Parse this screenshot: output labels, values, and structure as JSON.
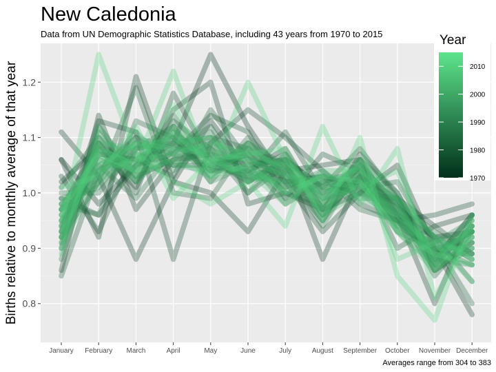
{
  "chart_data": {
    "type": "line",
    "title": "New Caledonia",
    "subtitle": "Data from UN Demographic Statistics Database, including 43 years from 1970 to 2015",
    "xlabel": "",
    "ylabel": "Births relative to monthly average of that year",
    "caption": "Averages range from 304 to 383",
    "categories": [
      "January",
      "February",
      "March",
      "April",
      "May",
      "June",
      "July",
      "August",
      "September",
      "October",
      "November",
      "December"
    ],
    "ylim": [
      0.73,
      1.27
    ],
    "yticks": [
      0.8,
      0.9,
      1.0,
      1.1,
      1.2
    ],
    "ytick_labels": [
      "0.8",
      "0.9",
      "1.0",
      "1.1",
      "1.2"
    ],
    "grid": true,
    "legend": {
      "title": "Year",
      "position": "right",
      "range": [
        1970,
        2015
      ],
      "ticks": [
        1970,
        1980,
        1990,
        2000,
        2010
      ],
      "tick_labels": [
        "1970",
        "1980",
        "1990",
        "2000",
        "2010"
      ],
      "color_low": "#01301a",
      "color_high": "#5ee48c"
    },
    "colors": {
      "panel": "#ebebeb",
      "grid": "#ffffff",
      "line_opacity": 0.3
    },
    "series": [
      {
        "year": 1970,
        "values": [
          1.06,
          0.98,
          1.05,
          1.09,
          1.25,
          1.12,
          1.02,
          1.03,
          1.01,
          0.96,
          0.92,
          0.93
        ]
      },
      {
        "year": 1971,
        "values": [
          1.11,
          1.03,
          0.88,
          1.02,
          1.13,
          1.04,
          1.08,
          0.97,
          1.0,
          1.05,
          0.9,
          0.78
        ]
      },
      {
        "year": 1972,
        "values": [
          0.86,
          1.14,
          0.97,
          1.06,
          1.07,
          1.05,
          1.06,
          0.88,
          1.03,
          0.99,
          0.94,
          0.96
        ]
      },
      {
        "year": 1973,
        "values": [
          1.06,
          0.92,
          1.21,
          1.02,
          1.0,
          0.93,
          1.04,
          1.05,
          1.06,
          0.96,
          0.8,
          0.96
        ]
      },
      {
        "year": 1974,
        "values": [
          1.02,
          1.08,
          1.01,
          1.15,
          1.2,
          0.98,
          1.0,
          0.97,
          1.05,
          0.95,
          0.89,
          0.93
        ]
      },
      {
        "year": 1975,
        "values": [
          0.93,
          1.13,
          1.11,
          0.88,
          1.09,
          1.15,
          1.1,
          1.04,
          0.98,
          0.95,
          0.96,
          0.98
        ]
      },
      {
        "year": 1976,
        "values": [
          1.03,
          0.93,
          1.08,
          1.09,
          1.04,
          1.07,
          1.02,
          0.93,
          1.0,
          0.99,
          0.87,
          0.94
        ]
      },
      {
        "year": 1977,
        "values": [
          0.97,
          1.09,
          1.0,
          1.18,
          1.06,
          1.02,
          1.06,
          1.01,
          1.08,
          0.99,
          0.86,
          0.91
        ]
      },
      {
        "year": 1978,
        "values": [
          0.99,
          0.96,
          1.05,
          1.07,
          1.14,
          1.11,
          0.99,
          1.07,
          1.04,
          0.9,
          0.94,
          0.89
        ]
      },
      {
        "year": 1979,
        "values": [
          0.85,
          1.04,
          1.1,
          1.05,
          1.05,
          1.03,
          1.11,
          1.0,
          1.02,
          0.98,
          0.92,
          0.84
        ]
      },
      {
        "year": 1980,
        "values": [
          0.92,
          1.02,
          1.19,
          1.0,
          0.99,
          1.09,
          1.03,
          0.95,
          1.07,
          1.0,
          0.88,
          0.96
        ]
      },
      {
        "year": 1981,
        "values": [
          1.01,
          1.1,
          1.02,
          1.13,
          1.08,
          1.0,
          1.05,
          0.96,
          1.03,
          0.93,
          0.9,
          0.87
        ]
      },
      {
        "year": 1982,
        "values": [
          0.94,
          1.07,
          1.06,
          1.03,
          1.15,
          1.06,
          0.98,
          1.02,
          1.04,
          0.97,
          0.85,
          0.93
        ]
      },
      {
        "year": 1983,
        "values": [
          0.98,
          0.96,
          1.13,
          1.1,
          1.04,
          1.04,
          1.07,
          0.99,
          1.01,
          1.02,
          0.91,
          0.8
        ]
      },
      {
        "year": 1984,
        "values": [
          0.9,
          1.12,
          1.03,
          1.06,
          1.1,
          1.08,
          1.01,
          1.03,
          0.97,
          0.95,
          0.88,
          0.96
        ]
      },
      {
        "year": 1985,
        "values": [
          1.0,
          1.0,
          1.08,
          1.12,
          1.02,
          1.1,
          1.04,
          0.94,
          1.05,
          0.98,
          0.93,
          0.89
        ]
      },
      {
        "year": 1986,
        "values": [
          0.95,
          1.05,
          0.99,
          1.08,
          1.12,
          1.02,
          1.06,
          1.01,
          1.02,
          0.96,
          0.9,
          0.91
        ]
      },
      {
        "year": 1987,
        "values": [
          0.88,
          1.09,
          1.04,
          1.14,
          1.05,
          1.07,
          1.0,
          0.98,
          1.06,
          1.0,
          0.87,
          0.94
        ]
      },
      {
        "year": 1988,
        "values": [
          0.97,
          1.03,
          1.11,
          1.04,
          1.09,
          1.03,
          1.05,
          0.96,
          1.03,
          0.97,
          0.92,
          0.88
        ]
      },
      {
        "year": 1989,
        "values": [
          0.92,
          1.07,
          1.06,
          1.1,
          1.03,
          1.08,
          1.02,
          1.02,
          1.0,
          0.95,
          0.89,
          0.93
        ]
      },
      {
        "year": 1990,
        "values": [
          0.99,
          1.01,
          1.09,
          1.07,
          1.11,
          1.0,
          1.07,
          0.97,
          1.05,
          0.98,
          0.86,
          0.9
        ]
      },
      {
        "year": 1991,
        "values": [
          0.93,
          1.11,
          1.02,
          1.11,
          1.06,
          1.06,
          1.03,
          1.0,
          1.02,
          0.94,
          0.91,
          0.95
        ]
      },
      {
        "year": 1992,
        "values": [
          0.96,
          1.04,
          1.07,
          1.05,
          1.08,
          1.04,
          1.01,
          1.04,
          0.99,
          0.99,
          0.88,
          0.87
        ]
      },
      {
        "year": 1993,
        "values": [
          0.91,
          1.08,
          1.05,
          1.12,
          1.04,
          1.09,
          1.05,
          0.95,
          1.04,
          0.96,
          0.9,
          0.92
        ]
      },
      {
        "year": 1994,
        "values": [
          0.97,
          1.02,
          1.1,
          1.08,
          1.07,
          1.02,
          1.04,
          0.99,
          1.06,
          0.93,
          0.87,
          0.94
        ]
      },
      {
        "year": 1995,
        "values": [
          0.94,
          1.09,
          1.03,
          1.06,
          1.09,
          1.07,
          0.99,
          1.02,
          1.01,
          0.97,
          0.89,
          0.89
        ]
      },
      {
        "year": 1996,
        "values": [
          0.98,
          1.05,
          1.08,
          1.1,
          1.02,
          1.05,
          1.06,
          0.98,
          1.03,
          0.95,
          0.91,
          0.93
        ]
      },
      {
        "year": 1997,
        "values": [
          0.92,
          1.06,
          1.04,
          1.09,
          1.1,
          1.03,
          1.02,
          1.01,
          1.0,
          0.98,
          0.86,
          0.92
        ]
      },
      {
        "year": 1998,
        "values": [
          0.95,
          1.03,
          1.09,
          1.07,
          1.05,
          1.08,
          1.04,
          0.97,
          1.04,
          0.94,
          0.9,
          0.9
        ]
      },
      {
        "year": 1999,
        "values": [
          0.9,
          1.1,
          1.06,
          1.11,
          1.06,
          1.04,
          1.0,
          1.03,
          1.02,
          0.96,
          0.88,
          0.95
        ]
      },
      {
        "year": 2000,
        "values": [
          0.96,
          1.07,
          1.02,
          1.08,
          1.08,
          1.06,
          1.05,
          0.99,
          1.01,
          0.99,
          0.92,
          0.88
        ]
      },
      {
        "year": 2001,
        "values": [
          0.93,
          1.04,
          1.09,
          1.05,
          1.04,
          1.09,
          1.03,
          1.0,
          1.05,
          0.95,
          0.87,
          0.91
        ]
      },
      {
        "year": 2002,
        "values": [
          0.97,
          1.08,
          1.05,
          1.12,
          1.07,
          1.02,
          1.06,
          0.96,
          1.0,
          0.97,
          0.89,
          0.93
        ]
      },
      {
        "year": 2003,
        "values": [
          0.91,
          1.02,
          1.07,
          1.09,
          1.1,
          1.05,
          1.01,
          1.03,
          1.03,
          0.94,
          0.91,
          0.89
        ]
      },
      {
        "year": 2004,
        "values": [
          0.95,
          1.06,
          1.04,
          1.06,
          1.03,
          1.08,
          1.04,
          0.98,
          1.06,
          0.98,
          0.88,
          0.94
        ]
      },
      {
        "year": 2005,
        "values": [
          0.93,
          1.09,
          1.08,
          1.1,
          1.06,
          1.03,
          1.02,
          1.01,
          0.99,
          0.96,
          0.9,
          0.9
        ]
      },
      {
        "year": 2006,
        "values": [
          0.98,
          1.04,
          1.06,
          1.07,
          1.09,
          1.07,
          1.05,
          0.97,
          1.02,
          0.93,
          0.86,
          0.92
        ]
      },
      {
        "year": 2007,
        "values": [
          0.89,
          1.12,
          1.03,
          1.11,
          1.05,
          1.04,
          0.98,
          1.04,
          1.04,
          0.99,
          0.92,
          0.88
        ]
      },
      {
        "year": 2008,
        "values": [
          0.96,
          1.05,
          1.09,
          1.08,
          1.07,
          1.06,
          1.03,
          1.02,
          1.01,
          1.04,
          0.87,
          0.94
        ]
      },
      {
        "year": 2009,
        "values": [
          0.92,
          1.08,
          1.05,
          1.22,
          1.04,
          1.2,
          1.06,
          0.99,
          1.05,
          0.88,
          0.91,
          0.84
        ]
      },
      {
        "year": 2010,
        "values": [
          0.94,
          1.25,
          1.07,
          1.02,
          0.98,
          1.02,
          0.94,
          1.12,
          0.98,
          1.08,
          0.81,
          0.93
        ]
      },
      {
        "year": 2011,
        "values": [
          1.01,
          1.03,
          1.12,
          0.99,
          1.06,
          1.07,
          1.08,
          0.95,
          1.1,
          0.85,
          0.77,
          0.96
        ]
      },
      {
        "year": 2012,
        "values": [
          0.97,
          1.07,
          1.04,
          1.16,
          1.03,
          1.05,
          1.0,
          1.03,
          1.02,
          0.93,
          0.89,
          0.87
        ]
      }
    ]
  }
}
